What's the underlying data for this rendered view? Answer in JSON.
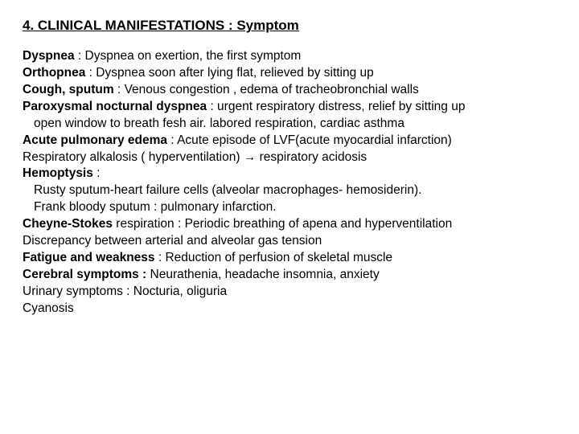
{
  "title": "4. CLINICAL MANIFESTATIONS : Symptom",
  "lines": {
    "l1b": "Dyspnea",
    "l1": " : Dyspnea on exertion,  the first symptom",
    "l2b": "Orthopnea",
    "l2": " : Dyspnea soon after lying flat, relieved by sitting up",
    "l3b": "Cough, sputum",
    "l3": " : Venous congestion , edema of tracheobronchial walls",
    "l4b": "Paroxysmal nocturnal dyspnea",
    "l4": " : urgent respiratory distress, relief by sitting up",
    "l5": "open window to breath fesh air. labored respiration,  cardiac asthma",
    "l6b": "Acute pulmonary edema",
    "l6": " : Acute episode of LVF(acute myocardial infarction)",
    "l7": "Respiratory alkalosis ( hyperventilation) → respiratory     acidosis",
    "l8b": "Hemoptysis",
    "l8": " :",
    "l9": "Rusty sputum-heart failure cells (alveolar macrophages-   hemosiderin).",
    "l10": "Frank bloody sputum : pulmonary infarction.",
    "l11b": "Cheyne-Stokes",
    "l11": " respiration :  Periodic breathing of apena and hyperventilation",
    "l12": "Discrepancy between arterial and alveolar gas tension",
    "l13b": "Fatigue and weakness",
    "l13": " : Reduction of perfusion of skeletal muscle",
    "l14b": "Cerebral symptoms :",
    "l14": " Neurathenia, headache insomnia, anxiety",
    "l15": "Urinary symptoms : Nocturia, oliguria",
    "l16": "Cyanosis"
  },
  "style": {
    "background": "#ffffff",
    "text_color": "#000000",
    "title_fontsize": 17,
    "body_fontsize": 15.5,
    "font_family": "Arial"
  }
}
